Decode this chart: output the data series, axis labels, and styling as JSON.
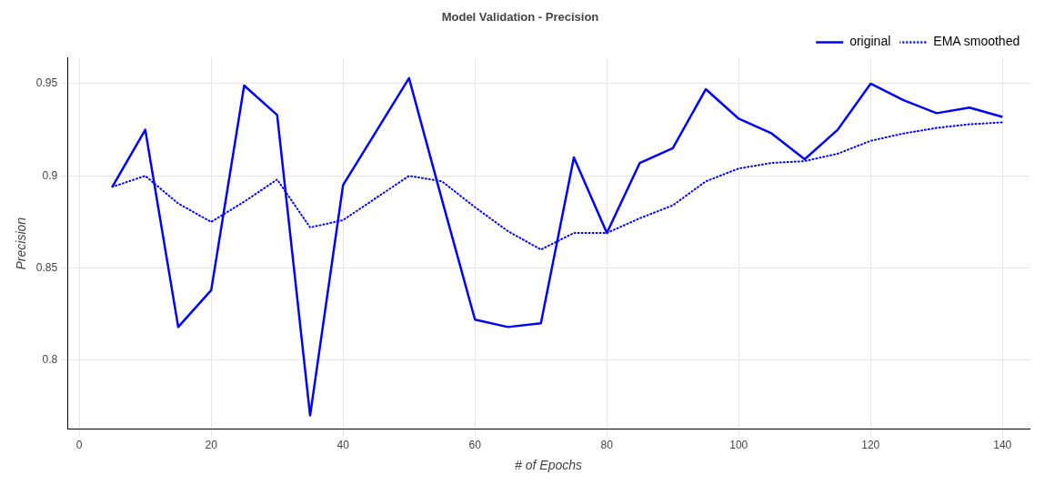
{
  "chart_data": {
    "type": "line",
    "title": "Model Validation - Precision",
    "xlabel": "# of Epochs",
    "ylabel": "Precision",
    "x": [
      5,
      10,
      15,
      20,
      25,
      30,
      35,
      40,
      45,
      50,
      55,
      60,
      65,
      70,
      75,
      80,
      85,
      90,
      95,
      100,
      105,
      110,
      115,
      120,
      125,
      130,
      135,
      140
    ],
    "series": [
      {
        "name": "original",
        "color": "#0000ff",
        "line_style": "solid",
        "values": [
          0.894,
          0.925,
          0.818,
          0.838,
          0.949,
          0.933,
          0.77,
          0.895,
          0.924,
          0.953,
          0.887,
          0.822,
          0.818,
          0.82,
          0.91,
          0.869,
          0.907,
          0.915,
          0.947,
          0.931,
          0.923,
          0.909,
          0.925,
          0.95,
          0.941,
          0.934,
          0.937,
          0.932
        ]
      },
      {
        "name": "EMA smoothed",
        "color": "#0000ff",
        "line_style": "dotted",
        "values": [
          0.894,
          0.9,
          0.885,
          0.875,
          0.886,
          0.898,
          0.872,
          0.876,
          0.888,
          0.9,
          0.897,
          0.883,
          0.87,
          0.86,
          0.869,
          0.869,
          0.877,
          0.884,
          0.897,
          0.904,
          0.907,
          0.908,
          0.912,
          0.919,
          0.923,
          0.926,
          0.928,
          0.929
        ]
      }
    ],
    "xlim": [
      -1.8,
      144.1
    ],
    "xticks": [
      0,
      20,
      40,
      60,
      80,
      100,
      120,
      140
    ],
    "ylim": [
      0.7625,
      0.964
    ],
    "yticks": [
      0.8,
      0.85,
      0.9,
      0.95
    ],
    "grid": true,
    "legend": "top right",
    "marker": "none"
  }
}
